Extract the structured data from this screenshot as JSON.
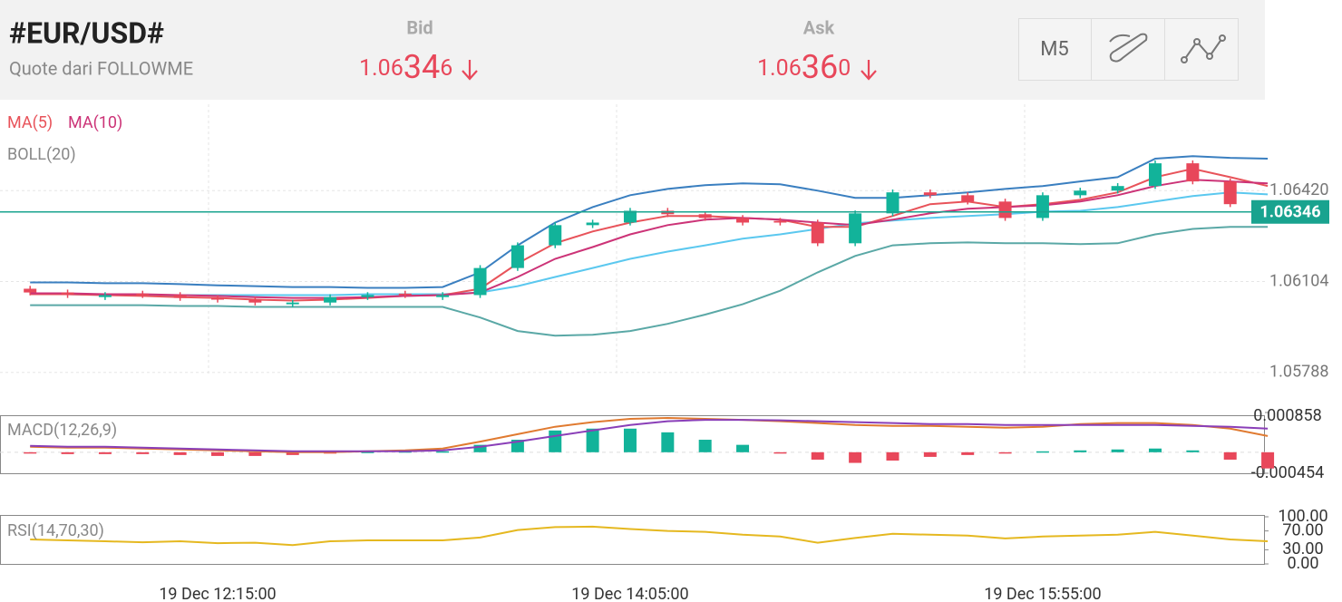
{
  "header": {
    "title": "#EUR/USD#",
    "subtitle": "Quote dari FOLLOWME",
    "bid": {
      "label": "Bid",
      "head": "1.06",
      "big": "34",
      "tail": "6"
    },
    "ask": {
      "label": "Ask",
      "head": "1.06",
      "big": "36",
      "tail": "0"
    },
    "period": "M5"
  },
  "chart_data": [
    {
      "type": "candlestick",
      "categories": [
        null,
        null,
        null,
        null,
        null,
        "19 Dec 12:15:00",
        null,
        null,
        null,
        null,
        null,
        null,
        null,
        null,
        null,
        null,
        "19 Dec 14:05:00",
        null,
        null,
        null,
        null,
        null,
        null,
        null,
        null,
        null,
        null,
        "19 Dec 15:55:00",
        null,
        null,
        null,
        null,
        null,
        null
      ],
      "open": [
        1.06079,
        1.06066,
        1.0605,
        1.06062,
        1.06057,
        1.06047,
        1.06041,
        1.06025,
        1.06031,
        1.0605,
        1.06062,
        1.0605,
        1.06057,
        1.06151,
        1.0623,
        1.063,
        1.06309,
        1.0635,
        1.06338,
        1.06325,
        1.06315,
        1.06309,
        1.06237,
        1.06341,
        1.06414,
        1.06404,
        1.06382,
        1.06325,
        1.06404,
        1.0642,
        1.06436,
        1.06515,
        1.06452,
        1.0636
      ],
      "high": [
        1.06089,
        1.06076,
        1.06067,
        1.06072,
        1.06067,
        1.06057,
        1.06051,
        1.06041,
        1.0606,
        1.06067,
        1.06072,
        1.06067,
        1.06161,
        1.0624,
        1.0631,
        1.06319,
        1.0636,
        1.0636,
        1.06348,
        1.06335,
        1.06325,
        1.06319,
        1.06351,
        1.06424,
        1.06424,
        1.06414,
        1.06392,
        1.06414,
        1.0643,
        1.06446,
        1.06525,
        1.06525,
        1.06462,
        1.0637
      ],
      "low": [
        1.06056,
        1.06047,
        1.0604,
        1.06047,
        1.06037,
        1.06031,
        1.06021,
        1.06015,
        1.06021,
        1.0604,
        1.06047,
        1.0604,
        1.06047,
        1.06141,
        1.0622,
        1.0629,
        1.06299,
        1.06328,
        1.06315,
        1.06299,
        1.06299,
        1.06227,
        1.06227,
        1.06331,
        1.06394,
        1.06372,
        1.06315,
        1.06315,
        1.06394,
        1.0641,
        1.06426,
        1.06442,
        1.06363,
        1.06336
      ],
      "close": [
        1.06066,
        1.06057,
        1.06057,
        1.06057,
        1.06047,
        1.06041,
        1.06031,
        1.06031,
        1.0605,
        1.06057,
        1.06057,
        1.06057,
        1.06151,
        1.0623,
        1.063,
        1.06309,
        1.0635,
        1.06338,
        1.06325,
        1.06309,
        1.06309,
        1.06237,
        1.06341,
        1.06414,
        1.06404,
        1.06382,
        1.06325,
        1.06404,
        1.0642,
        1.06436,
        1.06515,
        1.06452,
        1.06373,
        1.06346
      ],
      "up_color": "#12b39a",
      "down_color": "#e8475a",
      "series": [
        {
          "name": "MA(5)",
          "color": "#e8535a",
          "values": [
            1.0606,
            1.0606,
            1.06057,
            1.06054,
            1.0605,
            1.06047,
            1.06041,
            1.06038,
            1.06041,
            1.06047,
            1.06054,
            1.06057,
            1.06079,
            1.06167,
            1.06237,
            1.06278,
            1.06309,
            1.06332,
            1.06332,
            1.06325,
            1.06319,
            1.06294,
            1.06294,
            1.06332,
            1.06373,
            1.06382,
            1.06363,
            1.06373,
            1.06388,
            1.06414,
            1.06467,
            1.06496,
            1.06467,
            1.06436
          ]
        },
        {
          "name": "MA(10)",
          "color": "#cc3377",
          "values": [
            1.06063,
            1.06063,
            1.0606,
            1.0606,
            1.06057,
            1.06054,
            1.0605,
            1.06047,
            1.06047,
            1.0605,
            1.06054,
            1.06057,
            1.06066,
            1.0612,
            1.06183,
            1.06224,
            1.06268,
            1.063,
            1.06319,
            1.06325,
            1.06319,
            1.06309,
            1.063,
            1.06319,
            1.06341,
            1.06357,
            1.06363,
            1.06369,
            1.06382,
            1.06404,
            1.06436,
            1.06458,
            1.06452,
            1.06445
          ]
        }
      ],
      "bands": {
        "name": "BOLL(20)",
        "upper_color": "#3a7fc0",
        "mid_color": "#5bc8ef",
        "lower_color": "#5aa8a6",
        "upper": [
          1.06101,
          1.06101,
          1.06098,
          1.06098,
          1.06095,
          1.06091,
          1.06088,
          1.06085,
          1.06085,
          1.06082,
          1.06082,
          1.06085,
          1.06136,
          1.0623,
          1.06309,
          1.06363,
          1.06404,
          1.06426,
          1.06439,
          1.06445,
          1.06442,
          1.0642,
          1.06395,
          1.06395,
          1.06404,
          1.06414,
          1.06426,
          1.06436,
          1.06452,
          1.06467,
          1.06531,
          1.0654,
          1.06534,
          1.06531
        ],
        "mid": [
          1.0606,
          1.0606,
          1.06057,
          1.06057,
          1.06057,
          1.06057,
          1.06057,
          1.06057,
          1.06057,
          1.0606,
          1.0606,
          1.0606,
          1.06066,
          1.06088,
          1.0612,
          1.06151,
          1.06183,
          1.06208,
          1.0623,
          1.06253,
          1.06268,
          1.06287,
          1.06306,
          1.06316,
          1.06325,
          1.06332,
          1.06338,
          1.06347,
          1.0635,
          1.06363,
          1.06382,
          1.06401,
          1.06414,
          1.06407
        ],
        "lower": [
          1.06022,
          1.06022,
          1.06022,
          1.06022,
          1.06019,
          1.06019,
          1.06016,
          1.06016,
          1.06016,
          1.06016,
          1.06016,
          1.06016,
          1.05979,
          1.05932,
          1.05916,
          1.05919,
          1.05932,
          1.05957,
          1.05989,
          1.06025,
          1.06072,
          1.06136,
          1.06193,
          1.0623,
          1.06237,
          1.0624,
          1.06237,
          1.06237,
          1.06234,
          1.06237,
          1.06268,
          1.06287,
          1.06294,
          1.06294
        ]
      },
      "ylim": [
        1.05696,
        1.06736
      ],
      "yticks": [
        {
          "value": 1.0642,
          "label": "1.06420"
        },
        {
          "value": 1.06104,
          "label": "1.06104"
        },
        {
          "value": 1.05788,
          "label": "1.05788"
        }
      ],
      "last_price": {
        "value": 1.06346,
        "label": "1.06346"
      },
      "last_color": "#19a38f"
    },
    {
      "type": "macd",
      "title": "MACD(12,26,9)",
      "histogram": [
        -2e-05,
        -4e-05,
        -4e-05,
        -4e-05,
        -6e-05,
        -8e-05,
        -8e-05,
        -6e-05,
        -2e-05,
        1e-05,
        2e-05,
        2e-05,
        0.00016,
        0.00027,
        0.00047,
        0.00051,
        0.00051,
        0.00043,
        0.00027,
        0.00016,
        -2e-05,
        -0.00016,
        -0.00023,
        -0.00018,
        -0.0001,
        -6e-05,
        -2e-05,
        2e-05,
        4e-05,
        6e-05,
        8e-05,
        4e-05,
        -0.00016,
        -0.00035
      ],
      "up_color": "#12b39a",
      "down_color": "#e8475a",
      "series": [
        {
          "color": "#e07a30",
          "values": [
            0.00012,
            0.0001,
            0.0001,
            8e-05,
            6e-05,
            4e-05,
            2e-05,
            0,
            0,
            2e-05,
            4e-05,
            8e-05,
            0.00023,
            0.00039,
            0.00055,
            0.00065,
            0.00072,
            0.00074,
            0.00072,
            0.0007,
            0.00067,
            0.00063,
            0.00059,
            0.00057,
            0.00057,
            0.00055,
            0.00053,
            0.00055,
            0.00061,
            0.00063,
            0.00063,
            0.00059,
            0.00051,
            0.00035
          ]
        },
        {
          "color": "#8a3fb8",
          "values": [
            0.00014,
            0.00012,
            0.00012,
            0.0001,
            8e-05,
            6e-05,
            4e-05,
            2e-05,
            2e-05,
            2e-05,
            2e-05,
            4e-05,
            0.00012,
            0.00023,
            0.00035,
            0.00047,
            0.00059,
            0.00067,
            0.0007,
            0.0007,
            0.00069,
            0.00067,
            0.00065,
            0.00063,
            0.00061,
            0.00061,
            0.00059,
            0.00059,
            0.00059,
            0.00059,
            0.00059,
            0.00057,
            0.00055,
            0.00051
          ]
        }
      ],
      "ylim": [
        -0.000454,
        0.000858
      ],
      "yticks": [
        0.000858,
        -0.000454
      ]
    },
    {
      "type": "line",
      "title": "RSI(14,70,30)",
      "series": [
        {
          "color": "#e5b820",
          "values": [
            52,
            50,
            48,
            46,
            48,
            44,
            45,
            40,
            48,
            50,
            50,
            50,
            56,
            72,
            78,
            79,
            74,
            70,
            68,
            62,
            58,
            45,
            55,
            64,
            62,
            60,
            54,
            58,
            60,
            62,
            68,
            60,
            52,
            48
          ]
        }
      ],
      "ylim": [
        0,
        100
      ],
      "yticks": [
        {
          "value": 100,
          "label": "100.00"
        },
        {
          "value": 70,
          "label": "70.00"
        },
        {
          "value": 30,
          "label": "30.00"
        },
        {
          "value": 0,
          "label": "0.00"
        }
      ]
    }
  ]
}
